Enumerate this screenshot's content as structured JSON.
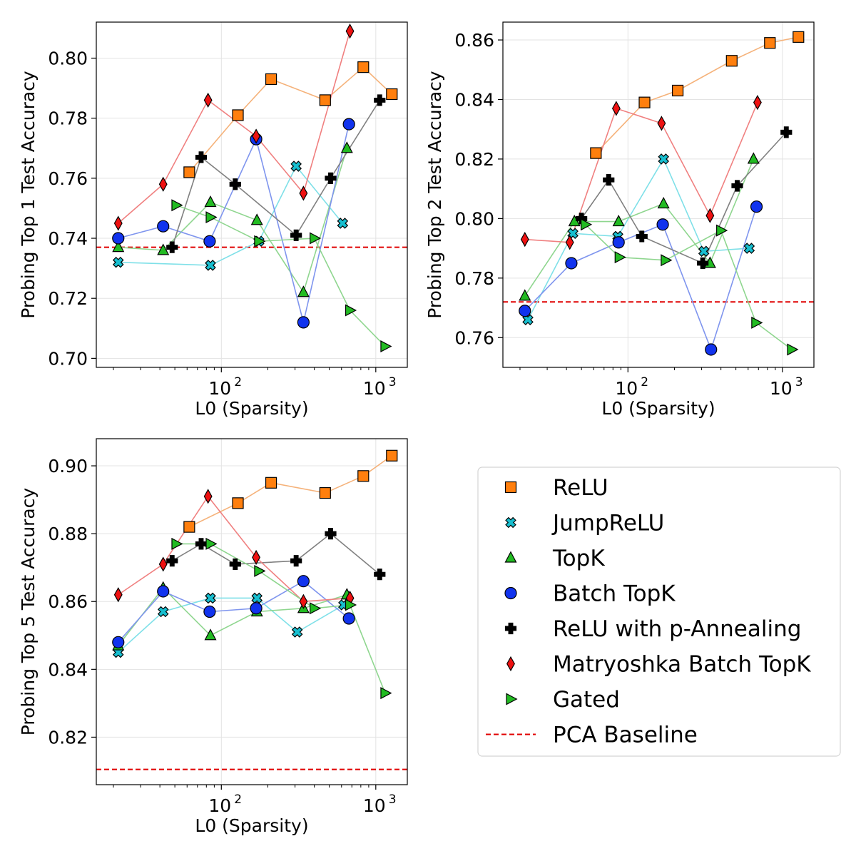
{
  "series_styles": [
    {
      "name": "ReLU",
      "marker": "square",
      "fill": "#ff7f0e",
      "line": "#f5b27a"
    },
    {
      "name": "JumpReLU",
      "marker": "xcross",
      "fill": "#17becf",
      "line": "#7fe0e8"
    },
    {
      "name": "TopK",
      "marker": "triangle-up",
      "fill": "#22bb22",
      "line": "#8fd68f"
    },
    {
      "name": "Batch TopK",
      "marker": "circle",
      "fill": "#1133ee",
      "line": "#7f95ee"
    },
    {
      "name": "ReLU with p-Annealing",
      "marker": "plus",
      "fill": "#000000",
      "line": "#808080"
    },
    {
      "name": "Matryoshka Batch TopK",
      "marker": "diamond",
      "fill": "#ee1111",
      "line": "#f08080"
    },
    {
      "name": "Gated",
      "marker": "triangle-right",
      "fill": "#22bb22",
      "line": "#8fd68f"
    }
  ],
  "legend": {
    "entries": [
      "ReLU",
      "JumpReLU",
      "TopK",
      "Batch TopK",
      "ReLU with p-Annealing",
      "Matryoshka Batch TopK",
      "Gated",
      "PCA Baseline"
    ],
    "placement": "bottom-right panel"
  },
  "chart_data": [
    {
      "type": "line",
      "xlabel": "L0 (Sparsity)",
      "ylabel": "Probing Top 1 Test Accuracy",
      "xscale": "log",
      "xlim": [
        15.5,
        1600
      ],
      "ylim": [
        0.697,
        0.812
      ],
      "yticks": [
        0.7,
        0.72,
        0.74,
        0.76,
        0.78,
        0.8
      ],
      "ytick_labels": [
        "0.70",
        "0.72",
        "0.74",
        "0.76",
        "0.78",
        "0.80"
      ],
      "xticks": [
        100,
        1000
      ],
      "xtick_labels": [
        "10",
        "10"
      ],
      "xtick_exponents": [
        "2",
        "3"
      ],
      "grid": true,
      "baseline": {
        "name": "PCA Baseline",
        "value": 0.737
      },
      "series": [
        {
          "name": "ReLU",
          "x": [
            62,
            128,
            210,
            470,
            830,
            1270
          ],
          "y": [
            0.762,
            0.781,
            0.793,
            0.786,
            0.797,
            0.788
          ]
        },
        {
          "name": "JumpReLU",
          "x": [
            21.5,
            85,
            175,
            305,
            610
          ],
          "y": [
            0.732,
            0.731,
            0.739,
            0.764,
            0.745
          ]
        },
        {
          "name": "TopK",
          "x": [
            21.5,
            42,
            85,
            170,
            340,
            650
          ],
          "y": [
            0.737,
            0.736,
            0.752,
            0.746,
            0.722,
            0.77
          ]
        },
        {
          "name": "Batch TopK",
          "x": [
            21.5,
            42,
            84,
            168,
            340,
            670
          ],
          "y": [
            0.74,
            0.744,
            0.739,
            0.773,
            0.712,
            0.778
          ]
        },
        {
          "name": "ReLU with p-Annealing",
          "x": [
            48,
            74,
            123,
            305,
            510,
            1060
          ],
          "y": [
            0.737,
            0.767,
            0.758,
            0.741,
            0.76,
            0.786
          ]
        },
        {
          "name": "Matryoshka Batch TopK",
          "x": [
            21.5,
            42,
            82,
            168,
            340,
            680
          ],
          "y": [
            0.745,
            0.758,
            0.786,
            0.774,
            0.755,
            0.809
          ]
        },
        {
          "name": "Gated",
          "x": [
            51,
            85,
            175,
            400,
            680,
            1150
          ],
          "y": [
            0.751,
            0.747,
            0.739,
            0.74,
            0.716,
            0.704
          ]
        }
      ]
    },
    {
      "type": "line",
      "xlabel": "L0 (Sparsity)",
      "ylabel": "Probing Top 2 Test Accuracy",
      "xscale": "log",
      "xlim": [
        15.5,
        1600
      ],
      "ylim": [
        0.75,
        0.866
      ],
      "yticks": [
        0.76,
        0.78,
        0.8,
        0.82,
        0.84,
        0.86
      ],
      "ytick_labels": [
        "0.76",
        "0.78",
        "0.80",
        "0.82",
        "0.84",
        "0.86"
      ],
      "xticks": [
        100,
        1000
      ],
      "xtick_labels": [
        "10",
        "10"
      ],
      "xtick_exponents": [
        "2",
        "3"
      ],
      "grid": true,
      "baseline": {
        "name": "PCA Baseline",
        "value": 0.772
      },
      "series": [
        {
          "name": "ReLU",
          "x": [
            62,
            128,
            210,
            470,
            830,
            1270
          ],
          "y": [
            0.822,
            0.839,
            0.843,
            0.853,
            0.859,
            0.861
          ]
        },
        {
          "name": "JumpReLU",
          "x": [
            22.5,
            44,
            86,
            170,
            310,
            610
          ],
          "y": [
            0.766,
            0.795,
            0.794,
            0.82,
            0.789,
            0.79
          ]
        },
        {
          "name": "TopK",
          "x": [
            21.5,
            45,
            87,
            170,
            340,
            650
          ],
          "y": [
            0.774,
            0.799,
            0.799,
            0.805,
            0.785,
            0.82
          ]
        },
        {
          "name": "Batch TopK",
          "x": [
            21.5,
            43,
            87,
            168,
            345,
            680
          ],
          "y": [
            0.769,
            0.785,
            0.792,
            0.798,
            0.756,
            0.804
          ]
        },
        {
          "name": "ReLU with p-Annealing",
          "x": [
            50,
            75,
            123,
            305,
            510,
            1060
          ],
          "y": [
            0.8,
            0.813,
            0.794,
            0.785,
            0.811,
            0.829
          ]
        },
        {
          "name": "Matryoshka Batch TopK",
          "x": [
            21.5,
            42,
            84,
            165,
            340,
            690
          ],
          "y": [
            0.793,
            0.792,
            0.837,
            0.832,
            0.801,
            0.839
          ]
        },
        {
          "name": "Gated",
          "x": [
            53,
            88,
            175,
            400,
            675,
            1150
          ],
          "y": [
            0.798,
            0.787,
            0.786,
            0.796,
            0.765,
            0.756
          ]
        }
      ]
    },
    {
      "type": "line",
      "xlabel": "L0 (Sparsity)",
      "ylabel": "Probing Top 5 Test Accuracy",
      "xscale": "log",
      "xlim": [
        15.5,
        1600
      ],
      "ylim": [
        0.806,
        0.908
      ],
      "yticks": [
        0.82,
        0.84,
        0.86,
        0.88,
        0.9
      ],
      "ytick_labels": [
        "0.82",
        "0.84",
        "0.86",
        "0.88",
        "0.90"
      ],
      "xticks": [
        100,
        1000
      ],
      "xtick_labels": [
        "10",
        "10"
      ],
      "xtick_exponents": [
        "2",
        "3"
      ],
      "grid": true,
      "baseline": {
        "name": "PCA Baseline",
        "value": 0.8105
      },
      "series": [
        {
          "name": "ReLU",
          "x": [
            62,
            128,
            210,
            470,
            830,
            1270
          ],
          "y": [
            0.882,
            0.889,
            0.895,
            0.892,
            0.897,
            0.903
          ]
        },
        {
          "name": "JumpReLU",
          "x": [
            21.5,
            42,
            85,
            170,
            310,
            620
          ],
          "y": [
            0.845,
            0.857,
            0.861,
            0.861,
            0.851,
            0.859
          ]
        },
        {
          "name": "TopK",
          "x": [
            21.5,
            42,
            85,
            170,
            340,
            650
          ],
          "y": [
            0.847,
            0.864,
            0.85,
            0.857,
            0.858,
            0.862
          ]
        },
        {
          "name": "Batch TopK",
          "x": [
            21.5,
            42,
            84,
            168,
            340,
            670
          ],
          "y": [
            0.848,
            0.863,
            0.857,
            0.858,
            0.866,
            0.855
          ]
        },
        {
          "name": "ReLU with p-Annealing",
          "x": [
            48,
            74,
            123,
            305,
            510,
            1060
          ],
          "y": [
            0.872,
            0.877,
            0.871,
            0.872,
            0.88,
            0.868
          ]
        },
        {
          "name": "Matryoshka Batch TopK",
          "x": [
            21.5,
            42,
            82,
            168,
            340,
            680
          ],
          "y": [
            0.862,
            0.871,
            0.891,
            0.873,
            0.86,
            0.861
          ]
        },
        {
          "name": "Gated",
          "x": [
            51,
            85,
            175,
            400,
            680,
            1150
          ],
          "y": [
            0.877,
            0.877,
            0.869,
            0.858,
            0.859,
            0.833
          ]
        }
      ]
    }
  ]
}
